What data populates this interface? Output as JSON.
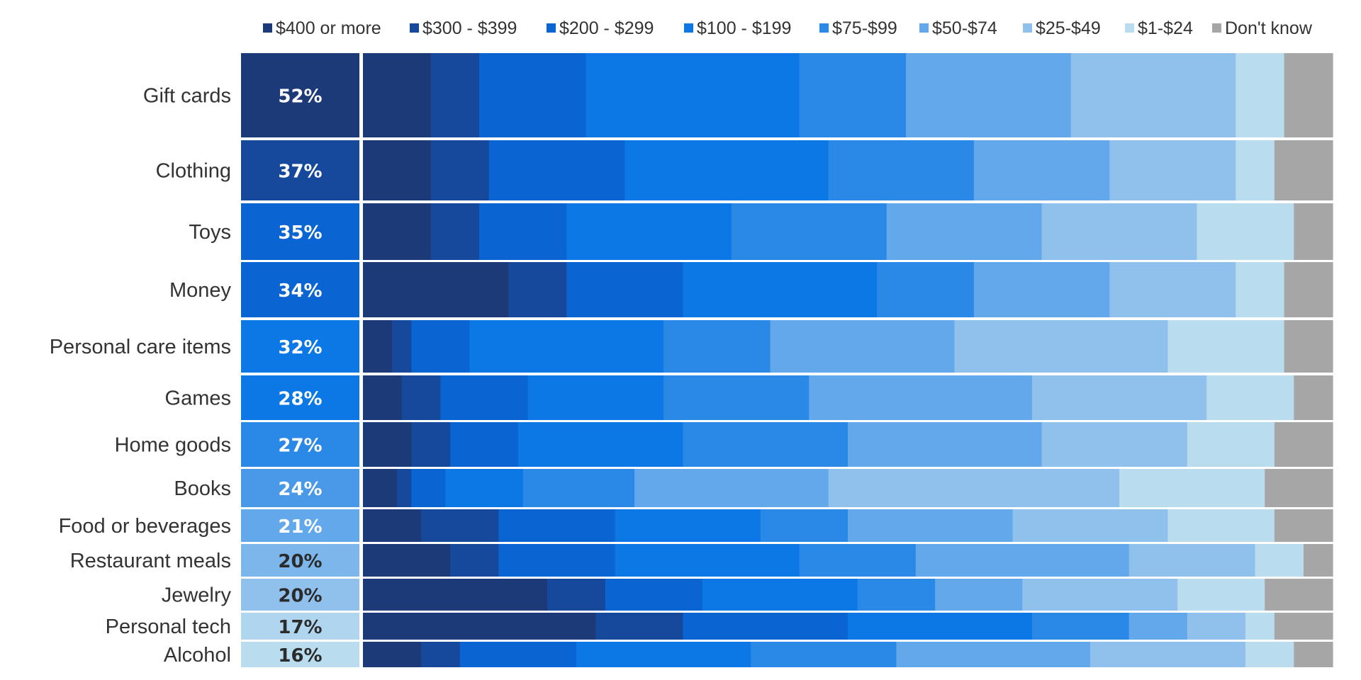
{
  "chart_data": {
    "type": "bar",
    "stacked": "100%",
    "categories": [
      "Gift cards",
      "Clothing",
      "Toys",
      "Money",
      "Personal care items",
      "Games",
      "Home goods",
      "Books",
      "Food or beverages",
      "Restaurant meals",
      "Jewelry",
      "Personal tech",
      "Alcohol"
    ],
    "category_share": [
      "52%",
      "37%",
      "35%",
      "34%",
      "32%",
      "28%",
      "27%",
      "24%",
      "21%",
      "20%",
      "20%",
      "17%",
      "16%"
    ],
    "share_values": [
      52,
      37,
      35,
      34,
      32,
      28,
      27,
      24,
      21,
      20,
      20,
      17,
      16
    ],
    "legend_placement": "top",
    "series": [
      {
        "name": "$400 or more",
        "color": "#1c3a78",
        "values": [
          7,
          7,
          7,
          15,
          3,
          4,
          5,
          3.5,
          6,
          9,
          19,
          24,
          6
        ]
      },
      {
        "name": "$300 - $399",
        "color": "#16499b",
        "values": [
          5,
          6,
          5,
          6,
          2,
          4,
          4,
          1.5,
          8,
          5,
          6,
          9,
          4
        ]
      },
      {
        "name": "$200 - $299",
        "color": "#0a64d2",
        "values": [
          11,
          14,
          9,
          12,
          6,
          9,
          7,
          3.5,
          12,
          12,
          10,
          17,
          12
        ]
      },
      {
        "name": "$100 - $199",
        "color": "#0c78e6",
        "values": [
          22,
          21,
          17,
          20,
          20,
          14,
          17,
          8,
          15,
          19,
          16,
          19,
          18
        ]
      },
      {
        "name": "$75-$99",
        "color": "#2a88e6",
        "values": [
          11,
          15,
          16,
          10,
          11,
          15,
          17,
          11.5,
          9,
          12,
          8,
          10,
          15
        ]
      },
      {
        "name": "$50-$74",
        "color": "#63a8ea",
        "values": [
          17,
          14,
          16,
          14,
          19,
          23,
          20,
          20,
          17,
          22,
          9,
          6,
          20
        ]
      },
      {
        "name": "$25-$49",
        "color": "#8fc1ec",
        "values": [
          17,
          13,
          16,
          13,
          22,
          18,
          15,
          30,
          16,
          13,
          16,
          6,
          16
        ]
      },
      {
        "name": "$1-$24",
        "color": "#b9dcee",
        "values": [
          5,
          4,
          10,
          5,
          12,
          9,
          9,
          15,
          11,
          5,
          9,
          3,
          5
        ]
      },
      {
        "name": "Don't know",
        "color": "#a6a6a6",
        "values": [
          5,
          6,
          4,
          5,
          5,
          4,
          6,
          7,
          6,
          3,
          7,
          6,
          4
        ]
      }
    ],
    "xlim": [
      0,
      100
    ],
    "title": "",
    "xlabel": "",
    "ylabel": ""
  }
}
